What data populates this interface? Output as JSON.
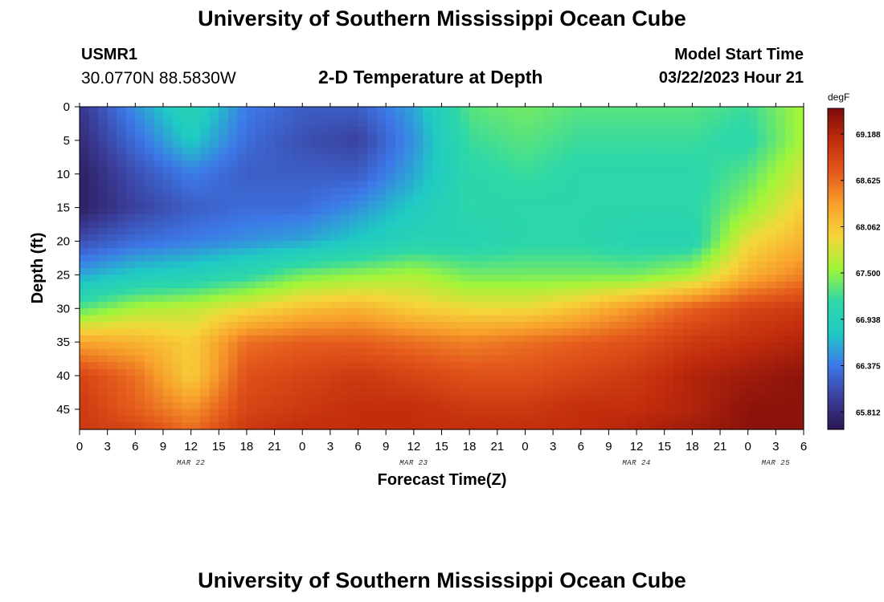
{
  "page": {
    "title_top": "University of Southern Mississippi Ocean Cube",
    "title_bottom": "University of Southern Mississippi Ocean Cube",
    "station_id": "USMR1",
    "coordinates": "30.0770N  88.5830W",
    "subtitle": "2-D Temperature at Depth",
    "start_label": "Model Start Time",
    "start_value": "03/22/2023 Hour 21"
  },
  "colors": {
    "palette": [
      "#2a1550",
      "#3b3f9c",
      "#3d78e8",
      "#1fcac4",
      "#2fd8a6",
      "#9ff53a",
      "#f5d63a",
      "#f8a02c",
      "#e45a1c",
      "#c22c0c",
      "#7a0b0b"
    ]
  },
  "chart_data": {
    "type": "heatmap",
    "xlabel": "Forecast Time(Z)",
    "ylabel": "Depth (ft)",
    "x_ticks": [
      "0",
      "3",
      "6",
      "9",
      "12",
      "15",
      "18",
      "21",
      "0",
      "3",
      "6",
      "9",
      "12",
      "15",
      "18",
      "21",
      "0",
      "3",
      "6",
      "9",
      "12",
      "15",
      "18",
      "21",
      "0",
      "3",
      "6"
    ],
    "x_hours": [
      0,
      3,
      6,
      9,
      12,
      15,
      18,
      21,
      24,
      27,
      30,
      33,
      36,
      39,
      42,
      45,
      48,
      51,
      54,
      57,
      60,
      63,
      66,
      69,
      72,
      75,
      78
    ],
    "x_range_hours": [
      0,
      78
    ],
    "date_labels": [
      {
        "text": "MAR 22",
        "hour": 12
      },
      {
        "text": "MAR 23",
        "hour": 36
      },
      {
        "text": "MAR 24",
        "hour": 60
      },
      {
        "text": "MAR 25",
        "hour": 75
      }
    ],
    "y_ticks": [
      0,
      5,
      10,
      15,
      20,
      25,
      30,
      35,
      40,
      45
    ],
    "ylim": [
      0,
      48
    ],
    "colorbar": {
      "unit": "degF",
      "min": 65.6,
      "max": 69.5,
      "tick_labels": [
        "69.188",
        "68.625",
        "68.062",
        "67.500",
        "66.938",
        "66.375",
        "65.812"
      ],
      "tick_values": [
        69.188,
        68.625,
        68.062,
        67.5,
        66.938,
        66.375,
        65.812
      ]
    },
    "grid_depths_ft": [
      0,
      5,
      10,
      15,
      20,
      25,
      30,
      35,
      40,
      45,
      48
    ],
    "grid_hours": [
      0,
      6,
      12,
      18,
      24,
      30,
      36,
      42,
      48,
      54,
      60,
      66,
      72,
      78
    ],
    "values_degF": [
      [
        65.9,
        66.5,
        67.0,
        66.4,
        66.2,
        66.2,
        66.6,
        67.3,
        67.4,
        67.3,
        67.3,
        67.3,
        67.2,
        67.6
      ],
      [
        65.8,
        66.3,
        66.8,
        66.3,
        66.1,
        66.0,
        66.5,
        67.2,
        67.3,
        67.2,
        67.2,
        67.2,
        67.1,
        67.6
      ],
      [
        65.7,
        66.1,
        66.4,
        66.2,
        66.2,
        66.2,
        66.6,
        67.1,
        67.2,
        67.1,
        67.1,
        67.1,
        67.3,
        67.8
      ],
      [
        65.7,
        66.0,
        66.2,
        66.3,
        66.3,
        66.5,
        66.8,
        67.1,
        67.1,
        67.1,
        67.1,
        67.1,
        67.5,
        68.0
      ],
      [
        66.1,
        66.3,
        66.4,
        66.5,
        66.6,
        66.8,
        67.0,
        67.0,
        67.1,
        67.1,
        67.0,
        67.0,
        67.9,
        68.2
      ],
      [
        66.6,
        66.8,
        66.9,
        67.1,
        67.4,
        67.5,
        67.6,
        67.4,
        67.4,
        67.4,
        67.4,
        67.6,
        68.2,
        68.5
      ],
      [
        67.3,
        67.6,
        67.7,
        67.9,
        68.1,
        68.2,
        68.0,
        67.9,
        67.9,
        68.1,
        68.4,
        68.7,
        68.9,
        69.0
      ],
      [
        68.3,
        68.2,
        68.0,
        68.6,
        68.7,
        68.7,
        68.6,
        68.5,
        68.6,
        68.7,
        68.8,
        69.0,
        69.1,
        69.2
      ],
      [
        68.9,
        68.6,
        68.0,
        68.8,
        68.9,
        69.0,
        68.9,
        68.8,
        68.8,
        68.9,
        69.0,
        69.2,
        69.3,
        69.4
      ],
      [
        69.0,
        68.7,
        68.4,
        68.9,
        69.0,
        69.1,
        69.1,
        69.0,
        69.0,
        69.1,
        69.1,
        69.2,
        69.4,
        69.4
      ],
      [
        69.0,
        68.9,
        68.6,
        69.0,
        69.1,
        69.1,
        69.1,
        69.1,
        69.1,
        69.1,
        69.2,
        69.3,
        69.4,
        69.4
      ]
    ]
  }
}
